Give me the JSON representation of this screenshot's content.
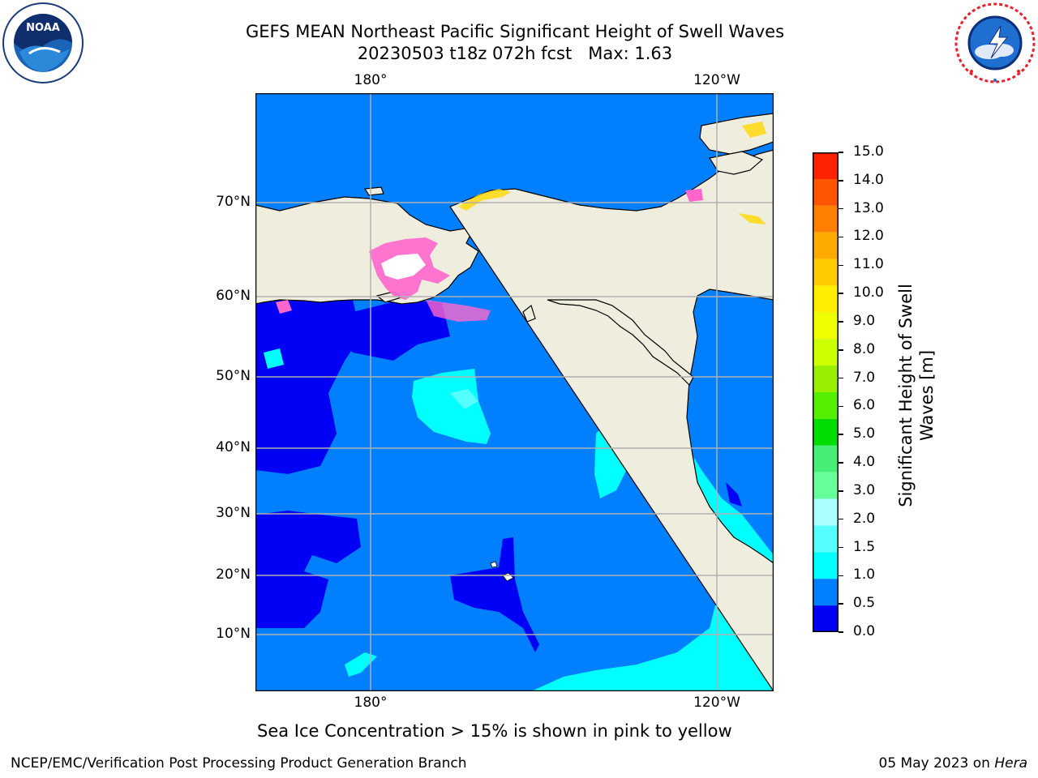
{
  "header": {
    "title_line1": "GEFS MEAN Northeast Pacific Significant Height of Swell Waves",
    "title_line2": "20230503 t18z 072h fcst   Max: 1.63"
  },
  "logos": {
    "left": {
      "name": "noaa-logo",
      "text": "NOAA",
      "ring_text": "NATIONAL OCEANIC AND ATMOSPHERIC ADMINISTRATION · U.S. DEPARTMENT OF COMMERCE"
    },
    "right": {
      "name": "nws-logo",
      "ring_text": "NATIONAL WEATHER SERVICE"
    }
  },
  "map": {
    "lon_labels": [
      "180°",
      "120°W"
    ],
    "lat_labels": [
      "70°N",
      "60°N",
      "50°N",
      "40°N",
      "30°N",
      "20°N",
      "10°N"
    ],
    "colors": {
      "land": "#efedde",
      "ocean_0_0.5": "#0000f5",
      "ocean_0.5_1.0": "#0080ff",
      "ocean_1.0_1.5": "#00ffff",
      "sea_ice_pink": "#ff66cc",
      "sea_ice_yellow": "#ffd700",
      "grid": "#b0b0b0"
    }
  },
  "colorbar": {
    "label": "Significant Height of Swell\nWaves [m]",
    "label_line1": "Significant Height of Swell",
    "label_line2": "Waves [m]",
    "ticks": [
      "15.0",
      "14.0",
      "13.0",
      "12.0",
      "11.0",
      "10.0",
      "9.0",
      "8.0",
      "7.0",
      "6.0",
      "5.0",
      "4.0",
      "3.0",
      "2.0",
      "1.5",
      "1.0",
      "0.5",
      "0.0"
    ],
    "colors": [
      "#ff0000",
      "#ff2200",
      "#ff5500",
      "#ff8000",
      "#ffaa00",
      "#ffcc00",
      "#ffee00",
      "#f0ff00",
      "#ccff00",
      "#99ee00",
      "#55ee00",
      "#00dd00",
      "#44ee77",
      "#66ff99",
      "#aaffff",
      "#55ffff",
      "#00ffff",
      "#0080ff",
      "#0000f5"
    ]
  },
  "note": "Sea Ice Concentration > 15% is shown in pink to yellow",
  "footer": {
    "left": "NCEP/EMC/Verification Post Processing Product Generation Branch",
    "right_date": "05 May 2023 on ",
    "right_host": "Hera"
  }
}
